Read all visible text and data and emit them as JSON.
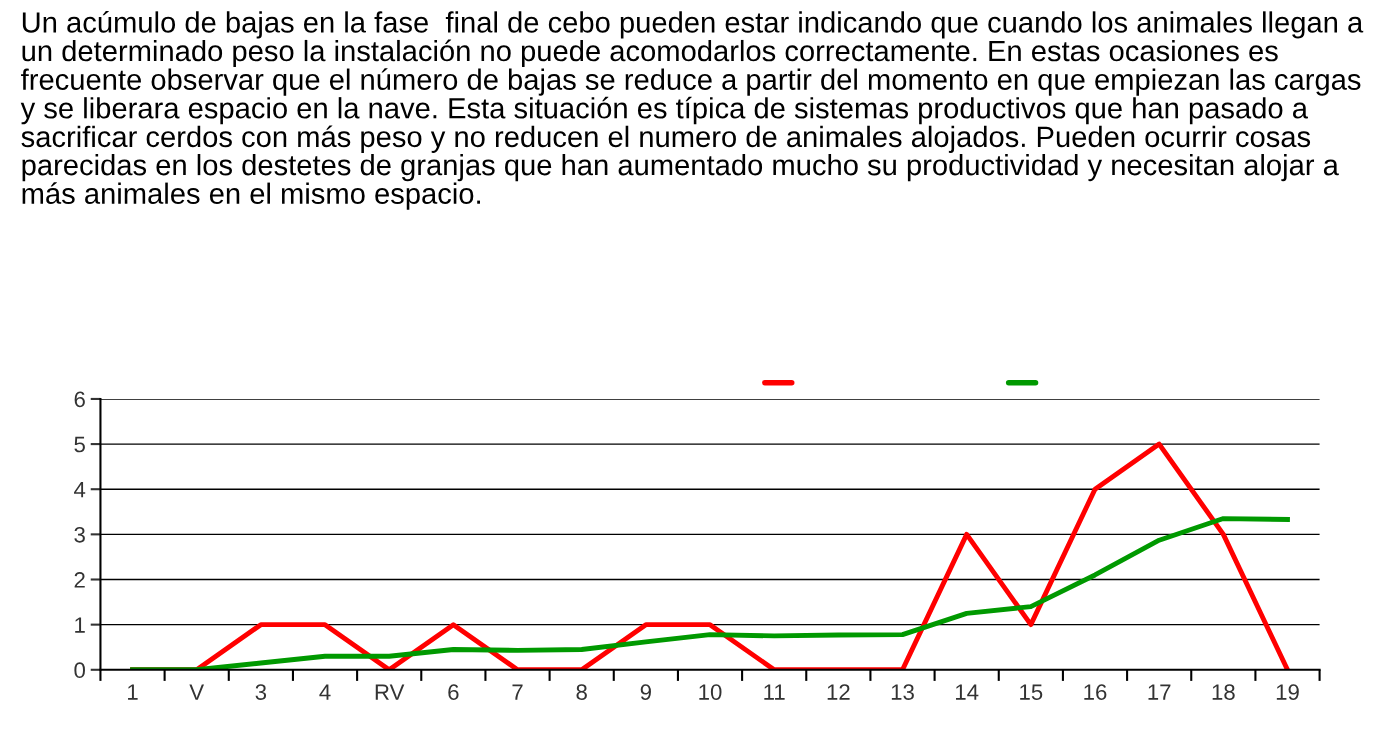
{
  "chart_data": {
    "type": "line",
    "title": "Un acúmulo de bajas en la fase  final de cebo pueden estar indicando que cuando los animales llegan a un determinado peso la instalación no puede acomodarlos correctamente. En estas ocasiones es frecuente observar que el número de bajas se reduce a partir del momento en que empiezan las cargas y se liberara espacio en la nave. Esta situación es típica de sistemas productivos que han pasado a sacrificar cerdos con más peso y no reducen el numero de animales alojados. Pueden ocurrir cosas parecidas en los destetes de granjas que han aumentado mucho su productividad y necesitan alojar a más animales en el mismo espacio.",
    "categories": [
      "1",
      "V",
      "3",
      "4",
      "RV",
      "6",
      "7",
      "8",
      "9",
      "10",
      "11",
      "12",
      "13",
      "14",
      "15",
      "16",
      "17",
      "18",
      "19"
    ],
    "series": [
      {
        "color": "#ff0000",
        "values": [
          0,
          0,
          1,
          1,
          0,
          1,
          0,
          0,
          1,
          1,
          0,
          0,
          0,
          3,
          1,
          4,
          5,
          3,
          0
        ]
      },
      {
        "color": "#009900",
        "values": [
          0,
          0,
          0.15,
          0.3,
          0.3,
          0.45,
          0.43,
          0.45,
          0.62,
          0.78,
          0.75,
          0.77,
          0.78,
          1.25,
          1.4,
          2.1,
          2.87,
          3.35,
          3.33
        ]
      }
    ],
    "ylim": [
      0,
      6
    ],
    "yticks": [
      0,
      1,
      2,
      3,
      4,
      5,
      6
    ],
    "grid": "y"
  }
}
